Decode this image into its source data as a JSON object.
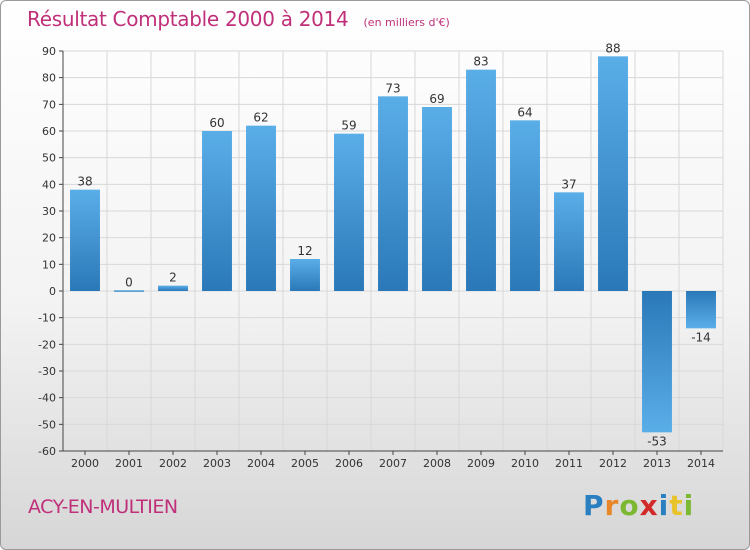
{
  "header": {
    "title": "Résultat Comptable 2000 à 2014",
    "subtitle": "(en milliers d'€)"
  },
  "footer": {
    "commune": "ACY-EN-MULTIEN",
    "logo": {
      "p": "P",
      "r": "r",
      "o": "o",
      "x": "x",
      "i1": "i",
      "t": "t",
      "i2": "i"
    }
  },
  "colors": {
    "bar_light": "#5aaee8",
    "bar_dark": "#2a78b8",
    "title": "#c0307a",
    "grid": "#d8d8d8"
  },
  "chart_data": {
    "type": "bar",
    "title": "Résultat Comptable 2000 à 2014",
    "subtitle": "(en milliers d'€)",
    "categories": [
      "2000",
      "2001",
      "2002",
      "2003",
      "2004",
      "2005",
      "2006",
      "2007",
      "2008",
      "2009",
      "2010",
      "2011",
      "2012",
      "2013",
      "2014"
    ],
    "values": [
      38,
      0,
      2,
      60,
      62,
      12,
      59,
      73,
      69,
      83,
      64,
      37,
      88,
      -53,
      -14
    ],
    "data_labels": [
      "38",
      "0",
      "2",
      "60",
      "62",
      "12",
      "59",
      "73",
      "69",
      "83",
      "64",
      "37",
      "88",
      "-53",
      "-14"
    ],
    "y_ticks": [
      90,
      80,
      70,
      60,
      50,
      40,
      30,
      20,
      10,
      0,
      -10,
      -20,
      -30,
      -40,
      -50,
      -60
    ],
    "ylim": [
      -60,
      90
    ],
    "grid": true,
    "legend": "none"
  }
}
